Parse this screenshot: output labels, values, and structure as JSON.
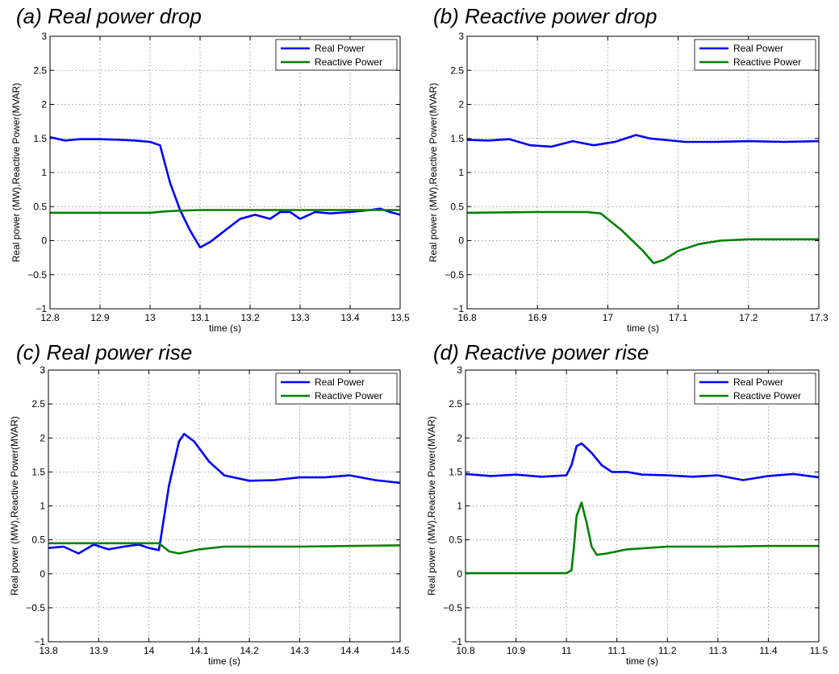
{
  "chart_data": [
    {
      "type": "line",
      "title": "(a) Real power drop",
      "xlabel": "time (s)",
      "ylabel": "Real power (MW),Reactive Power(MVAR)",
      "xlim": [
        12.8,
        13.5
      ],
      "ylim": [
        -1,
        3
      ],
      "xticks": [
        "12.8",
        "12.9",
        "13",
        "13.1",
        "13.2",
        "13.3",
        "13.4",
        "13.5"
      ],
      "yticks": [
        "−1",
        "−0.5",
        "0",
        "0.5",
        "1",
        "1.5",
        "2",
        "2.5",
        "3"
      ],
      "grid": true,
      "legend": "top-right",
      "series": [
        {
          "name": "Real Power",
          "color": "#0000ff",
          "x": [
            12.8,
            12.83,
            12.86,
            12.9,
            12.94,
            12.97,
            13.0,
            13.02,
            13.04,
            13.06,
            13.08,
            13.1,
            13.12,
            13.15,
            13.18,
            13.21,
            13.24,
            13.26,
            13.28,
            13.3,
            13.33,
            13.36,
            13.4,
            13.44,
            13.46,
            13.48,
            13.5
          ],
          "y": [
            1.52,
            1.47,
            1.49,
            1.49,
            1.48,
            1.47,
            1.45,
            1.4,
            0.85,
            0.45,
            0.15,
            -0.1,
            -0.02,
            0.15,
            0.32,
            0.38,
            0.32,
            0.42,
            0.42,
            0.32,
            0.42,
            0.4,
            0.42,
            0.45,
            0.47,
            0.42,
            0.38
          ]
        },
        {
          "name": "Reactive Power",
          "color": "#008000",
          "x": [
            12.8,
            12.9,
            13.0,
            13.03,
            13.06,
            13.1,
            13.2,
            13.3,
            13.4,
            13.5
          ],
          "y": [
            0.41,
            0.41,
            0.41,
            0.43,
            0.44,
            0.45,
            0.45,
            0.45,
            0.45,
            0.45
          ]
        }
      ]
    },
    {
      "type": "line",
      "title": "(b) Reactive power drop",
      "xlabel": "time (s)",
      "ylabel": "Real power (MW),Reactive Power(MVAR)",
      "xlim": [
        16.8,
        17.3
      ],
      "ylim": [
        -1,
        3
      ],
      "xticks": [
        "16.8",
        "16.9",
        "17",
        "17.1",
        "17.2",
        "17.3"
      ],
      "yticks": [
        "−1",
        "−0.5",
        "0",
        "0.5",
        "1",
        "1.5",
        "2",
        "2.5",
        "3"
      ],
      "grid": true,
      "legend": "top-right",
      "series": [
        {
          "name": "Real Power",
          "color": "#0000ff",
          "x": [
            16.8,
            16.83,
            16.86,
            16.89,
            16.92,
            16.95,
            16.98,
            17.01,
            17.04,
            17.06,
            17.08,
            17.11,
            17.15,
            17.2,
            17.25,
            17.3
          ],
          "y": [
            1.48,
            1.47,
            1.49,
            1.4,
            1.38,
            1.46,
            1.4,
            1.45,
            1.55,
            1.5,
            1.48,
            1.45,
            1.45,
            1.46,
            1.45,
            1.46
          ]
        },
        {
          "name": "Reactive Power",
          "color": "#008000",
          "x": [
            16.8,
            16.9,
            16.97,
            16.99,
            17.02,
            17.05,
            17.065,
            17.08,
            17.1,
            17.13,
            17.16,
            17.2,
            17.25,
            17.3
          ],
          "y": [
            0.41,
            0.42,
            0.42,
            0.4,
            0.15,
            -0.15,
            -0.33,
            -0.28,
            -0.15,
            -0.05,
            0.0,
            0.02,
            0.02,
            0.02
          ]
        }
      ]
    },
    {
      "type": "line",
      "title": "(c) Real power rise",
      "xlabel": "time (s)",
      "ylabel": "Real power (MW),Reactive Power(MVAR)",
      "xlim": [
        13.8,
        14.5
      ],
      "ylim": [
        -1,
        3
      ],
      "xticks": [
        "13.8",
        "13.9",
        "14",
        "14.1",
        "14.2",
        "14.3",
        "14.4",
        "14.5"
      ],
      "yticks": [
        "−1",
        "−0.5",
        "0",
        "0.5",
        "1",
        "1.5",
        "2",
        "2.5",
        "3"
      ],
      "grid": true,
      "legend": "top-right",
      "series": [
        {
          "name": "Real Power",
          "color": "#0000ff",
          "x": [
            13.8,
            13.83,
            13.86,
            13.89,
            13.92,
            13.95,
            13.98,
            14.0,
            14.02,
            14.04,
            14.06,
            14.07,
            14.09,
            14.12,
            14.15,
            14.2,
            14.25,
            14.3,
            14.35,
            14.4,
            14.45,
            14.5
          ],
          "y": [
            0.38,
            0.4,
            0.3,
            0.43,
            0.36,
            0.4,
            0.43,
            0.38,
            0.35,
            1.3,
            1.95,
            2.06,
            1.95,
            1.65,
            1.45,
            1.37,
            1.38,
            1.42,
            1.42,
            1.45,
            1.38,
            1.34
          ]
        },
        {
          "name": "Reactive Power",
          "color": "#008000",
          "x": [
            13.8,
            13.9,
            14.0,
            14.02,
            14.04,
            14.06,
            14.1,
            14.15,
            14.2,
            14.3,
            14.4,
            14.5
          ],
          "y": [
            0.45,
            0.45,
            0.45,
            0.45,
            0.33,
            0.3,
            0.36,
            0.4,
            0.4,
            0.4,
            0.41,
            0.42
          ]
        }
      ]
    },
    {
      "type": "line",
      "title": "(d) Reactive power rise",
      "xlabel": "time (s)",
      "ylabel": "Real power (MW),Reactive Power(MVAR)",
      "xlim": [
        10.8,
        11.5
      ],
      "ylim": [
        -1,
        3
      ],
      "xticks": [
        "10.8",
        "10.9",
        "11",
        "11.1",
        "11.2",
        "11.3",
        "11.4",
        "11.5"
      ],
      "yticks": [
        "−1",
        "−0.5",
        "0",
        "0.5",
        "1",
        "1.5",
        "2",
        "2.5",
        "3"
      ],
      "grid": true,
      "legend": "top-right",
      "series": [
        {
          "name": "Real Power",
          "color": "#0000ff",
          "x": [
            10.8,
            10.85,
            10.9,
            10.95,
            11.0,
            11.01,
            11.02,
            11.03,
            11.05,
            11.07,
            11.09,
            11.12,
            11.15,
            11.2,
            11.25,
            11.3,
            11.35,
            11.4,
            11.45,
            11.5
          ],
          "y": [
            1.47,
            1.44,
            1.46,
            1.43,
            1.45,
            1.6,
            1.88,
            1.92,
            1.78,
            1.6,
            1.5,
            1.5,
            1.46,
            1.45,
            1.43,
            1.45,
            1.38,
            1.44,
            1.47,
            1.42
          ]
        },
        {
          "name": "Reactive Power",
          "color": "#008000",
          "x": [
            10.8,
            10.9,
            11.0,
            11.01,
            11.015,
            11.02,
            11.03,
            11.04,
            11.05,
            11.06,
            11.08,
            11.12,
            11.2,
            11.3,
            11.4,
            11.5
          ],
          "y": [
            0.01,
            0.01,
            0.01,
            0.05,
            0.4,
            0.85,
            1.05,
            0.75,
            0.4,
            0.28,
            0.3,
            0.36,
            0.4,
            0.4,
            0.41,
            0.41
          ]
        }
      ]
    }
  ]
}
